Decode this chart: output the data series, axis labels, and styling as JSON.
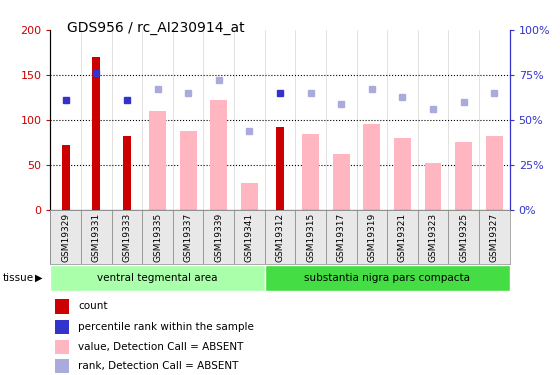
{
  "title": "GDS956 / rc_AI230914_at",
  "samples": [
    "GSM19329",
    "GSM19331",
    "GSM19333",
    "GSM19335",
    "GSM19337",
    "GSM19339",
    "GSM19341",
    "GSM19312",
    "GSM19315",
    "GSM19317",
    "GSM19319",
    "GSM19321",
    "GSM19323",
    "GSM19325",
    "GSM19327"
  ],
  "count_values": [
    72,
    170,
    82,
    null,
    null,
    null,
    null,
    92,
    null,
    null,
    null,
    null,
    null,
    null,
    null
  ],
  "rank_values": [
    61,
    76,
    61,
    null,
    null,
    null,
    null,
    65,
    null,
    null,
    null,
    null,
    null,
    null,
    null
  ],
  "absent_value": [
    null,
    null,
    null,
    110,
    88,
    122,
    30,
    null,
    84,
    62,
    96,
    80,
    52,
    76,
    82
  ],
  "absent_rank": [
    null,
    null,
    null,
    67,
    65,
    72,
    44,
    null,
    65,
    59,
    67,
    63,
    56,
    60,
    65
  ],
  "tissue_groups": [
    {
      "label": "ventral tegmental area",
      "start": 0,
      "end": 7,
      "color": "#aaffaa"
    },
    {
      "label": "substantia nigra pars compacta",
      "start": 7,
      "end": 15,
      "color": "#44dd44"
    }
  ],
  "ylim_left": [
    0,
    200
  ],
  "ylim_right": [
    0,
    100
  ],
  "yticks_left": [
    0,
    50,
    100,
    150,
    200
  ],
  "ytick_labels_left": [
    "0",
    "50",
    "100",
    "150",
    "200"
  ],
  "yticks_right": [
    0,
    25,
    50,
    75,
    100
  ],
  "ytick_labels_right": [
    "0%",
    "25%",
    "50%",
    "75%",
    "100%"
  ],
  "count_color": "#cc0000",
  "rank_color": "#3333cc",
  "absent_bar_color": "#ffb6c1",
  "absent_rank_color": "#aaaadd",
  "legend_items": [
    {
      "label": "count",
      "color": "#cc0000"
    },
    {
      "label": "percentile rank within the sample",
      "color": "#3333cc"
    },
    {
      "label": "value, Detection Call = ABSENT",
      "color": "#ffb6c1"
    },
    {
      "label": "rank, Detection Call = ABSENT",
      "color": "#aaaadd"
    }
  ]
}
